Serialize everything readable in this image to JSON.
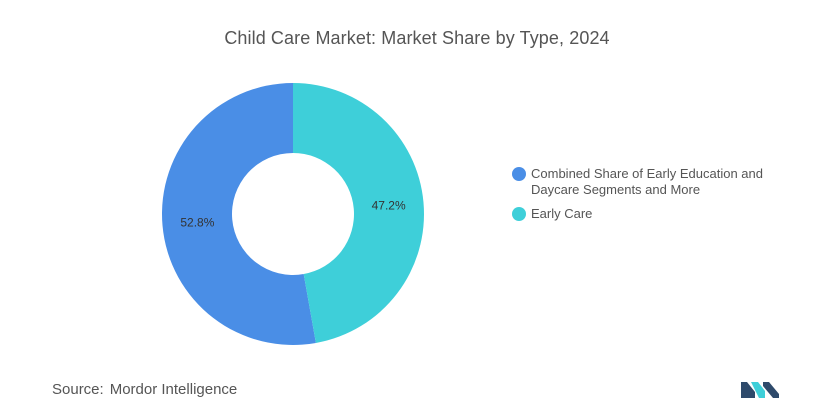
{
  "chart_data": {
    "type": "pie",
    "title": "Child Care Market: Market Share by Type, 2024",
    "donut": true,
    "categories": [
      "Combined Share of Early Education and Daycare Segments and More",
      "Early Care"
    ],
    "values": [
      52.8,
      47.2
    ],
    "data_labels": [
      "52.8%",
      "47.2%"
    ],
    "colors": [
      "#4a8ee6",
      "#3ecfd9"
    ],
    "legend_position": "right"
  },
  "legend": {
    "items": [
      {
        "label_line1": "Combined Share of Early Education and",
        "label_line2": "Daycare Segments and More",
        "color": "#4a8ee6"
      },
      {
        "label_line1": "Early Care",
        "label_line2": "",
        "color": "#3ecfd9"
      }
    ]
  },
  "footer": {
    "source_prefix": "Source:",
    "source_name": "Mordor Intelligence"
  },
  "logo": {
    "icon": "mordor-intelligence-logo",
    "colors": [
      "#2e4a6b",
      "#3ecfd9"
    ]
  }
}
